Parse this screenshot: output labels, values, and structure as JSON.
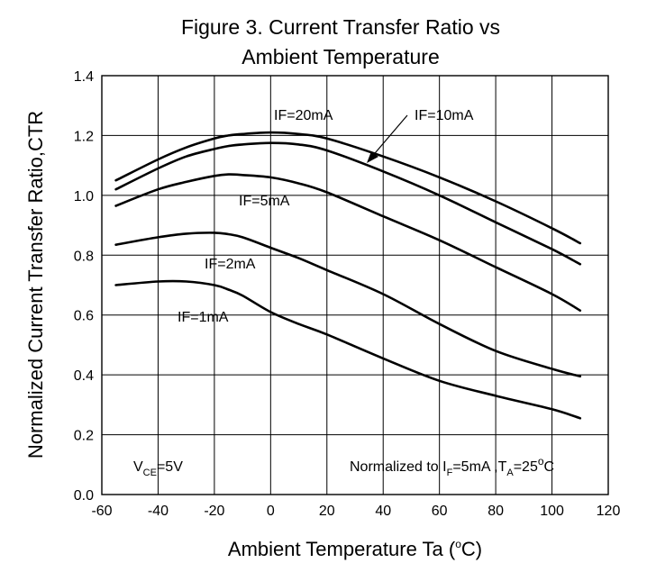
{
  "chart_data": {
    "type": "line",
    "title_line1": "Figure 3. Current Transfer Ratio vs",
    "title_line2": "Ambient Temperature",
    "xlabel_text": "Ambient Temperature Ta (",
    "xlabel_unit_sup": "o",
    "xlabel_unit_end": "C)",
    "ylabel": "Normalized Current Transfer Ratio,CTR",
    "xlim": [
      -60,
      120
    ],
    "ylim": [
      0.0,
      1.4
    ],
    "grid": true,
    "x_ticks": [
      "-60",
      "-40",
      "-20",
      "0",
      "20",
      "40",
      "60",
      "80",
      "100",
      "120"
    ],
    "y_ticks": [
      "0.0",
      "0.2",
      "0.4",
      "0.6",
      "0.8",
      "1.0",
      "1.2",
      "1.4"
    ],
    "x": [
      -55,
      -40,
      -30,
      -20,
      -15,
      -10,
      0,
      10,
      20,
      40,
      60,
      80,
      100,
      110
    ],
    "series": [
      {
        "name": "IF=20mA",
        "values": [
          1.05,
          1.12,
          1.16,
          1.19,
          1.2,
          1.205,
          1.21,
          1.205,
          1.19,
          1.13,
          1.06,
          0.98,
          0.89,
          0.84
        ]
      },
      {
        "name": "IF=10mA",
        "values": [
          1.02,
          1.09,
          1.13,
          1.155,
          1.165,
          1.17,
          1.175,
          1.17,
          1.15,
          1.08,
          1.0,
          0.91,
          0.82,
          0.77
        ]
      },
      {
        "name": "IF=5mA",
        "values": [
          0.965,
          1.02,
          1.045,
          1.065,
          1.07,
          1.068,
          1.06,
          1.04,
          1.01,
          0.93,
          0.85,
          0.76,
          0.67,
          0.615
        ]
      },
      {
        "name": "IF=2mA",
        "values": [
          0.835,
          0.86,
          0.872,
          0.875,
          0.87,
          0.86,
          0.825,
          0.79,
          0.75,
          0.67,
          0.57,
          0.48,
          0.42,
          0.395
        ]
      },
      {
        "name": "IF=1mA",
        "values": [
          0.7,
          0.712,
          0.712,
          0.7,
          0.685,
          0.665,
          0.61,
          0.57,
          0.535,
          0.455,
          0.38,
          0.33,
          0.285,
          0.255
        ]
      }
    ],
    "annotations": {
      "if20": "IF=20mA",
      "if10": "IF=10mA",
      "if5": "IF=5mA",
      "if2": "IF=2mA",
      "if1": "IF=1mA",
      "vce_main": "V",
      "vce_sub": "CE",
      "vce_end": "=5V",
      "norm_a": "Normalized to I",
      "norm_sub_f": "F",
      "norm_b": "=5mA ,T",
      "norm_sub_a": "A",
      "norm_c": "=25",
      "norm_sup": "o",
      "norm_d": "C"
    }
  }
}
